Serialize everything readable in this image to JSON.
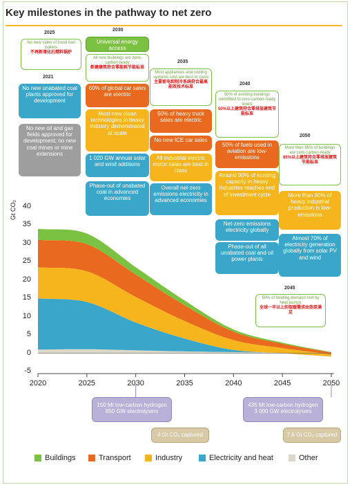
{
  "title": "Key milestones in the pathway to net zero",
  "colors": {
    "buildings": "#7cc242",
    "transport": "#e96a1e",
    "industry": "#f7b51d",
    "electricity": "#3aa6c9",
    "other": "#dcd8c8",
    "accent": "#f3b526"
  },
  "chart_data": {
    "type": "area",
    "stacked": true,
    "ylabel": "Gt CO₂",
    "xlim": [
      2020,
      2050
    ],
    "ylim": [
      -5,
      40
    ],
    "yticks": [
      "-5",
      "0",
      "5",
      "10",
      "15",
      "20",
      "25",
      "30",
      "35",
      "40"
    ],
    "xticks": [
      "2020",
      "2025",
      "2030",
      "2035",
      "2040",
      "2045",
      "2050"
    ],
    "x": [
      2020,
      2025,
      2030,
      2035,
      2040,
      2045,
      2050
    ],
    "series": [
      {
        "name": "Other",
        "values": [
          1.0,
          1.1,
          0.8,
          0.5,
          0.3,
          0.1,
          -0.5
        ]
      },
      {
        "name": "Electricity and heat",
        "values": [
          14.0,
          12.9,
          7.6,
          3.5,
          0.6,
          -0.1,
          -0.4
        ]
      },
      {
        "name": "Industry",
        "values": [
          8.5,
          8.4,
          7.0,
          4.8,
          2.7,
          1.4,
          0.6
        ]
      },
      {
        "name": "Transport",
        "values": [
          7.5,
          7.4,
          6.1,
          4.3,
          2.3,
          1.2,
          0.5
        ]
      },
      {
        "name": "Buildings",
        "values": [
          3.0,
          2.9,
          2.0,
          1.3,
          0.6,
          0.3,
          0.1
        ]
      }
    ],
    "legend": [
      "Buildings",
      "Transport",
      "Industry",
      "Electricity and heat",
      "Other"
    ],
    "legend_placement": "bottom"
  },
  "milestones": {
    "y2021": {
      "year": "2021",
      "coal": "No new unabated coal plants approved for development",
      "oilgas": "No new oil and gas fields approved for development; no new coal mines or mine extensions"
    },
    "y2025": {
      "year": "2025",
      "fossil": "No new sales of fossil fuel boilers",
      "fossil_zh": "不再新增化石燃料锅炉"
    },
    "y2030": {
      "year": "2030",
      "energy": "Universal energy access",
      "buildings": "All new buildings are zero-carbon-ready",
      "buildings_zh": "新建建筑符合零能耗节能标准",
      "cars": "60% of global car sales are electric",
      "industry": "Most new clean technologies in heavy industry demonstrated at scale",
      "solar": "1 020 GW annual solar and wind additions",
      "coal": "Phase-out of unabated coal in advanced economies"
    },
    "y2035": {
      "year": "2035",
      "appliances": "Most appliances and cooling systems sold are best in class",
      "appliances_zh": "主要家电和制冷系统符合最高能效技术标准",
      "trucks": "50% of heavy truck sales are electric",
      "ice": "No new ICE car sales",
      "motors": "All industrial electric motor sales are best in class",
      "grid": "Overall net-zero emissions electricity in advanced economies"
    },
    "y2040": {
      "year": "2040",
      "retrofit": "50% of existing buildings retrofitted to zero-carbon-ready levels",
      "retrofit_zh": "50%以上建筑符合零排放建筑节能标准",
      "aviation": "50% of fuels used in aviation are low-emissions",
      "heavy": "Around 90% of existing capacity in heavy industries reaches end of investment cycle",
      "netzero": "Net-zero emissions electricity globally",
      "phaseout": "Phase-out of all unabated coal and oil power plants"
    },
    "y2045": {
      "year": "2045",
      "heat": "50% of heating demand met by heat pumps",
      "heat_zh": "全球一半以上的取暖需求由热泵满足"
    },
    "y2050": {
      "year": "2050",
      "buildings": "More than 85% of buildings are zero-carbon-ready",
      "buildings_zh": "85%以上建筑符合零排放建筑节能标准",
      "industry": "More than 90% of heavy industrial production is low-emissions",
      "electricity": "Almost 70% of electricity generation globally from solar PV and wind"
    },
    "bottom": {
      "h2_2030": "150 Mt low-carbon hydrogen 850 GW electrolysers",
      "ccus_2030": "4 Gt CO₂ captured",
      "h2_2050": "435 Mt low-carbon hydrogen 3 000 GW electrolysers",
      "ccus_2050": "7.6 Gt CO₂ captured"
    }
  }
}
